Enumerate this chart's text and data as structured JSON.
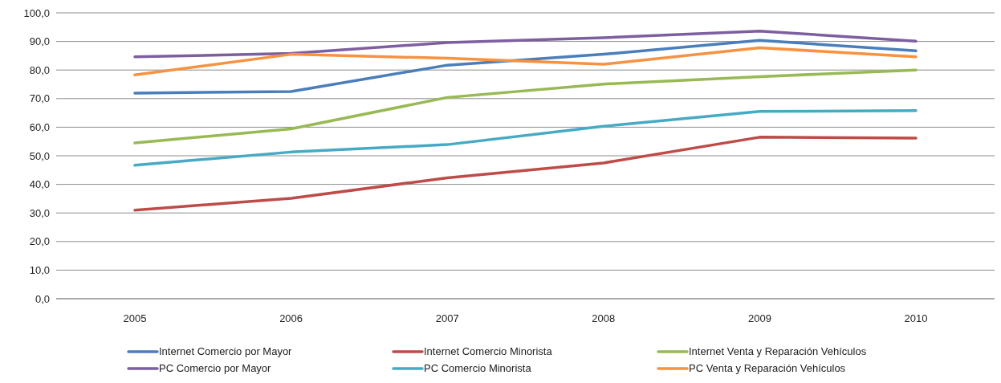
{
  "chart_data": {
    "type": "line",
    "categories": [
      "2005",
      "2006",
      "2007",
      "2008",
      "2009",
      "2010"
    ],
    "series": [
      {
        "name": "Internet Comercio por Mayor",
        "color": "#4a7ebb",
        "values": [
          71.9,
          72.5,
          81.7,
          85.5,
          90.4,
          86.7
        ]
      },
      {
        "name": "Internet Comercio Minorista",
        "color": "#be4b48",
        "values": [
          31.0,
          35.1,
          42.3,
          47.5,
          56.5,
          56.2
        ]
      },
      {
        "name": "Internet Venta y Reparación Vehículos",
        "color": "#98b954",
        "values": [
          54.5,
          59.4,
          70.4,
          75.1,
          77.7,
          80.0
        ]
      },
      {
        "name": "PC Comercio por Mayor",
        "color": "#7d5fa0",
        "values": [
          84.6,
          85.8,
          89.6,
          91.3,
          93.6,
          90.1
        ]
      },
      {
        "name": "PC Comercio Minorista",
        "color": "#46aac5",
        "values": [
          46.7,
          51.3,
          53.9,
          60.3,
          65.5,
          65.8
        ]
      },
      {
        "name": "PC Venta y Reparación Vehículos",
        "color": "#f69240",
        "values": [
          78.3,
          85.5,
          84.1,
          82.0,
          87.8,
          84.6
        ]
      }
    ],
    "ylim": [
      0,
      100
    ],
    "yticks": [
      {
        "value": 0,
        "label": "0,0"
      },
      {
        "value": 10,
        "label": "10,0"
      },
      {
        "value": 20,
        "label": "20,0"
      },
      {
        "value": 30,
        "label": "30,0"
      },
      {
        "value": 40,
        "label": "40,0"
      },
      {
        "value": 50,
        "label": "50,0"
      },
      {
        "value": 60,
        "label": "60,0"
      },
      {
        "value": 70,
        "label": "70,0"
      },
      {
        "value": 80,
        "label": "80,0"
      },
      {
        "value": 90,
        "label": "90,0"
      },
      {
        "value": 100,
        "label": "100,0"
      }
    ],
    "grid": "y",
    "legend": "bottom",
    "marker": "none",
    "line_style": "solid"
  }
}
